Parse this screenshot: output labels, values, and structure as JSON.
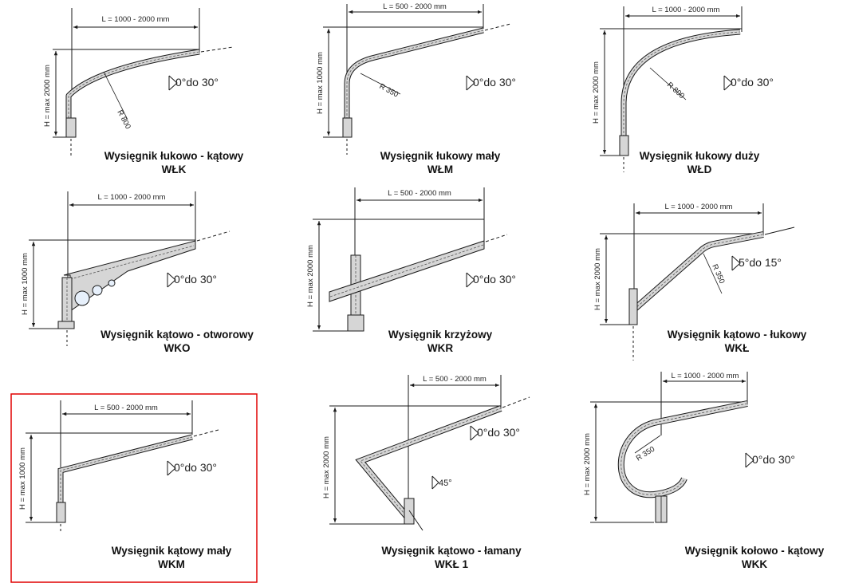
{
  "colors": {
    "arm_fill": "#d6d6d6",
    "line": "#1a1a1a",
    "highlight": "#e10000"
  },
  "cells": [
    {
      "id": "wlk",
      "name": "Wysięgnik łukowo - kątowy",
      "code": "WŁK",
      "length": "L = 1000 - 2000 mm",
      "height": "H = max 2000 mm",
      "radius": "R 800",
      "angle": "0°do 30°",
      "selected": false
    },
    {
      "id": "wlm",
      "name": "Wysięgnik łukowy mały",
      "code": "WŁM",
      "length": "L = 500 - 2000 mm",
      "height": "H = max 1000 mm",
      "radius": "R 350",
      "angle": "0°do 30°",
      "selected": false
    },
    {
      "id": "wld",
      "name": "Wysięgnik łukowy duży",
      "code": "WŁD",
      "length": "L = 1000 - 2000 mm",
      "height": "H = max 2000 mm",
      "radius": "R 800",
      "angle": "0°do 30°",
      "selected": false
    },
    {
      "id": "wko",
      "name": "Wysięgnik kątowo - otworowy",
      "code": "WKO",
      "length": "L = 1000 - 2000 mm",
      "height": "H = max 1000 mm",
      "angle": "0°do 30°",
      "selected": false
    },
    {
      "id": "wkr",
      "name": "Wysięgnik krzyżowy",
      "code": "WKR",
      "length": "L = 500 - 2000 mm",
      "height": "H = max 2000 mm",
      "angle": "0°do 30°",
      "selected": false
    },
    {
      "id": "wkl",
      "name": "Wysięgnik kątowo - łukowy",
      "code": "WKŁ",
      "length": "L = 1000 - 2000 mm",
      "height": "H = max 2000 mm",
      "radius": "R 350",
      "angle": "5°do 15°",
      "selected": false
    },
    {
      "id": "wkm",
      "name": "Wysięgnik kątowy mały",
      "code": "WKM",
      "length": "L = 500 - 2000 mm",
      "height": "H = max 1000 mm",
      "angle": "0°do 30°",
      "selected": true
    },
    {
      "id": "wkl1",
      "name": "Wysięgnik kątowo - łamany",
      "code": "WKŁ 1",
      "length": "L = 500 - 2000 mm",
      "height": "H = max 2000 mm",
      "angle": "0°do 30°",
      "angle2": "45°",
      "selected": false
    },
    {
      "id": "wkk",
      "name": "Wysięgnik kołowo - kątowy",
      "code": "WKK",
      "length": "L = 1000 - 2000 mm",
      "height": "H = max 2000 mm",
      "radius": "R 350",
      "angle": "0°do 30°",
      "selected": false
    }
  ]
}
